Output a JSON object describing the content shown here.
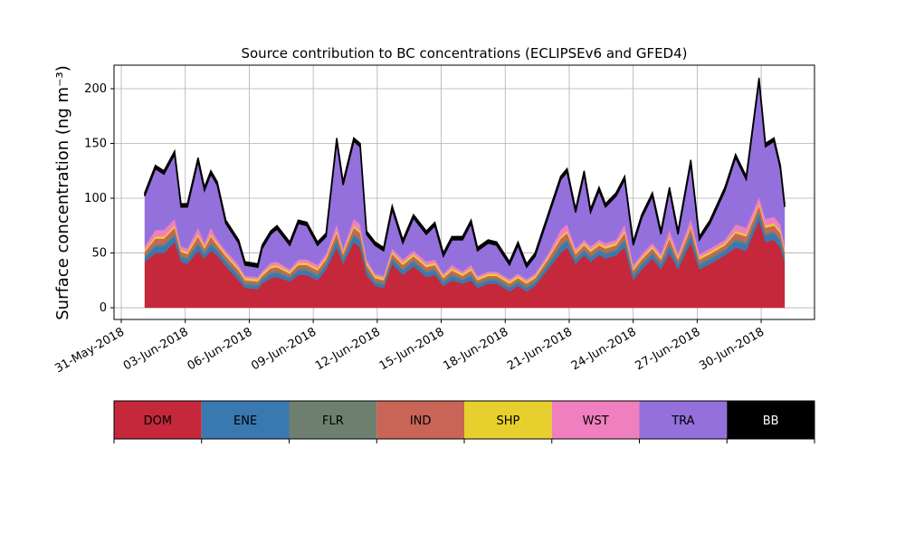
{
  "chart_data": {
    "type": "stacked-area",
    "title": "Source contribution to BC concentrations (ECLIPSEv6 and GFED4)",
    "y_label": "Surface concentration (ng m⁻³)",
    "x": [
      1.1,
      1.6,
      2.0,
      2.5,
      2.8,
      3.1,
      3.6,
      3.9,
      4.2,
      4.5,
      4.9,
      5.5,
      5.8,
      6.4,
      6.6,
      7.0,
      7.3,
      7.9,
      8.3,
      8.7,
      9.2,
      9.6,
      10.1,
      10.4,
      10.9,
      11.2,
      11.5,
      11.9,
      12.3,
      12.7,
      13.2,
      13.7,
      14.3,
      14.7,
      15.1,
      15.5,
      16.0,
      16.4,
      16.7,
      17.2,
      17.6,
      18.2,
      18.6,
      19.0,
      19.4,
      20.0,
      20.6,
      20.9,
      21.3,
      21.7,
      22.0,
      22.4,
      22.7,
      23.2,
      23.6,
      24.0,
      24.4,
      24.9,
      25.3,
      25.7,
      26.1,
      26.7,
      27.1,
      27.6,
      28.3,
      28.8,
      29.3,
      29.9,
      30.2,
      30.6,
      30.9,
      31.1
    ],
    "series": [
      {
        "name": "DOM",
        "color": "#c4283a",
        "values": [
          42,
          50,
          50,
          60,
          42,
          40,
          52,
          45,
          52,
          48,
          38,
          25,
          18,
          17,
          22,
          27,
          28,
          24,
          30,
          30,
          25,
          35,
          55,
          40,
          60,
          55,
          30,
          20,
          18,
          40,
          30,
          38,
          28,
          30,
          20,
          25,
          22,
          25,
          18,
          22,
          22,
          15,
          20,
          15,
          20,
          35,
          50,
          55,
          40,
          48,
          42,
          48,
          45,
          48,
          55,
          25,
          35,
          45,
          35,
          50,
          35,
          60,
          35,
          40,
          48,
          55,
          52,
          80,
          60,
          62,
          55,
          42
        ]
      },
      {
        "name": "ENE",
        "color": "#3a78b0",
        "values": [
          4,
          6,
          6,
          6,
          4,
          4,
          6,
          4,
          6,
          4,
          4,
          4,
          3,
          3,
          3,
          4,
          4,
          3,
          4,
          4,
          4,
          4,
          6,
          4,
          6,
          6,
          4,
          3,
          3,
          4,
          4,
          4,
          4,
          4,
          3,
          4,
          3,
          4,
          3,
          3,
          3,
          3,
          3,
          3,
          3,
          4,
          6,
          6,
          4,
          4,
          4,
          4,
          4,
          4,
          6,
          4,
          4,
          4,
          4,
          6,
          4,
          6,
          4,
          4,
          4,
          6,
          6,
          6,
          6,
          6,
          6,
          4
        ]
      },
      {
        "name": "FLR",
        "color": "#6e7f70",
        "values": [
          2,
          2,
          2,
          2,
          2,
          2,
          2,
          2,
          2,
          2,
          2,
          2,
          2,
          2,
          2,
          2,
          2,
          2,
          2,
          2,
          2,
          2,
          2,
          2,
          2,
          2,
          2,
          2,
          2,
          2,
          2,
          2,
          2,
          2,
          2,
          2,
          2,
          2,
          2,
          2,
          2,
          2,
          2,
          2,
          2,
          2,
          2,
          2,
          2,
          2,
          2,
          2,
          2,
          2,
          2,
          2,
          2,
          2,
          2,
          2,
          2,
          2,
          2,
          2,
          2,
          2,
          2,
          2,
          2,
          2,
          2,
          2
        ]
      },
      {
        "name": "IND",
        "color": "#c86556",
        "values": [
          3,
          5,
          5,
          5,
          3,
          3,
          5,
          3,
          5,
          3,
          3,
          3,
          2,
          2,
          2,
          3,
          3,
          2,
          3,
          3,
          3,
          3,
          5,
          3,
          5,
          5,
          3,
          2,
          2,
          3,
          3,
          3,
          3,
          3,
          2,
          3,
          2,
          3,
          2,
          2,
          2,
          2,
          2,
          2,
          2,
          3,
          5,
          5,
          3,
          3,
          3,
          3,
          3,
          3,
          5,
          3,
          3,
          3,
          3,
          5,
          3,
          5,
          3,
          3,
          3,
          5,
          5,
          5,
          5,
          5,
          5,
          3
        ]
      },
      {
        "name": "SHP",
        "color": "#e7cf2d",
        "values": [
          2,
          2,
          2,
          2,
          2,
          2,
          2,
          2,
          2,
          2,
          2,
          2,
          2,
          2,
          2,
          2,
          2,
          2,
          2,
          2,
          2,
          2,
          2,
          2,
          2,
          2,
          2,
          2,
          2,
          2,
          2,
          2,
          2,
          2,
          2,
          2,
          2,
          2,
          2,
          2,
          2,
          2,
          2,
          2,
          2,
          2,
          2,
          2,
          2,
          2,
          2,
          2,
          2,
          2,
          2,
          2,
          2,
          2,
          2,
          2,
          2,
          2,
          2,
          2,
          2,
          2,
          2,
          2,
          2,
          2,
          2,
          2
        ]
      },
      {
        "name": "WST",
        "color": "#f07fbf",
        "values": [
          3,
          6,
          6,
          6,
          3,
          3,
          6,
          3,
          6,
          3,
          3,
          3,
          2,
          2,
          2,
          3,
          3,
          2,
          3,
          3,
          3,
          3,
          6,
          3,
          6,
          6,
          3,
          2,
          2,
          3,
          3,
          3,
          3,
          3,
          2,
          3,
          2,
          3,
          2,
          2,
          2,
          2,
          2,
          2,
          2,
          3,
          6,
          6,
          3,
          3,
          3,
          3,
          3,
          3,
          6,
          3,
          3,
          3,
          3,
          6,
          3,
          6,
          3,
          3,
          3,
          6,
          6,
          6,
          6,
          6,
          6,
          3
        ]
      },
      {
        "name": "TRA",
        "color": "#9470dc",
        "values": [
          46,
          56,
          51,
          59,
          36,
          38,
          61,
          48,
          49,
          50,
          25,
          20,
          10,
          9,
          21,
          26,
          30,
          22,
          33,
          31,
          18,
          16,
          76,
          58,
          71,
          71,
          23,
          26,
          23,
          36,
          15,
          30,
          25,
          31,
          16,
          23,
          29,
          38,
          23,
          26,
          24,
          13,
          26,
          11,
          16,
          33,
          46,
          48,
          33,
          60,
          31,
          45,
          33,
          40,
          41,
          18,
          33,
          43,
          18,
          36,
          18,
          51,
          13,
          23,
          45,
          61,
          44,
          106,
          66,
          69,
          51,
          36
        ]
      },
      {
        "name": "BB",
        "color": "#000000",
        "values": [
          3,
          3,
          3,
          3,
          3,
          3,
          3,
          3,
          3,
          3,
          3,
          3,
          3,
          3,
          3,
          3,
          3,
          3,
          3,
          3,
          3,
          3,
          3,
          3,
          3,
          3,
          3,
          3,
          3,
          3,
          3,
          3,
          3,
          3,
          3,
          3,
          3,
          3,
          3,
          3,
          3,
          3,
          3,
          3,
          3,
          3,
          3,
          3,
          3,
          3,
          3,
          3,
          3,
          3,
          3,
          3,
          3,
          3,
          3,
          3,
          3,
          3,
          3,
          3,
          3,
          3,
          3,
          3,
          3,
          3,
          3,
          3
        ]
      }
    ],
    "xlim": [
      -0.34,
      32.5
    ],
    "xticks": [
      {
        "value": 0,
        "label": "31-May-2018"
      },
      {
        "value": 3,
        "label": "03-Jun-2018"
      },
      {
        "value": 6,
        "label": "06-Jun-2018"
      },
      {
        "value": 9,
        "label": "09-Jun-2018"
      },
      {
        "value": 12,
        "label": "12-Jun-2018"
      },
      {
        "value": 15,
        "label": "15-Jun-2018"
      },
      {
        "value": 18,
        "label": "18-Jun-2018"
      },
      {
        "value": 21,
        "label": "21-Jun-2018"
      },
      {
        "value": 24,
        "label": "24-Jun-2018"
      },
      {
        "value": 27,
        "label": "27-Jun-2018"
      },
      {
        "value": 30,
        "label": "30-Jun-2018"
      }
    ],
    "ylim": [
      -10.7,
      221.5
    ],
    "yticks": [
      0,
      50,
      100,
      150,
      200
    ],
    "grid": true
  }
}
